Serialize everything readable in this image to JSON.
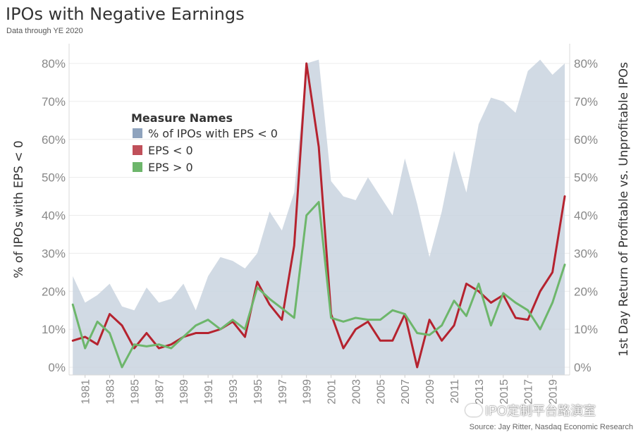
{
  "header": {
    "title": "IPOs with Negative Earnings",
    "subtitle": "Data through YE 2020"
  },
  "footer": {
    "source": "Source: Jay Ritter, Nasdaq Economic Research",
    "watermark": "IPO定制平台路演室"
  },
  "chart_data": {
    "type": "line",
    "title": "IPOs with Negative Earnings",
    "subtitle": "Data through YE 2020",
    "x": [
      1980,
      1981,
      1982,
      1983,
      1984,
      1985,
      1986,
      1987,
      1988,
      1989,
      1990,
      1991,
      1992,
      1993,
      1994,
      1995,
      1996,
      1997,
      1998,
      1999,
      2000,
      2001,
      2002,
      2003,
      2004,
      2005,
      2006,
      2007,
      2008,
      2009,
      2010,
      2011,
      2012,
      2013,
      2014,
      2015,
      2016,
      2017,
      2018,
      2019,
      2020
    ],
    "x_ticks": [
      "1981",
      "1983",
      "1985",
      "1987",
      "1989",
      "1991",
      "1993",
      "1995",
      "1997",
      "1999",
      "2001",
      "2003",
      "2005",
      "2007",
      "2009",
      "2011",
      "2013",
      "2015",
      "2017",
      "2019"
    ],
    "ylabel_left": "% of IPOs with EPS < 0",
    "ylabel_right": "1st Day Return of Profitable vs. Unprofitable IPOs",
    "ylim": [
      0,
      0.8
    ],
    "y_ticks": [
      "0%",
      "10%",
      "20%",
      "30%",
      "40%",
      "50%",
      "60%",
      "70%",
      "80%"
    ],
    "grid": true,
    "legend": {
      "title": "Measure Names",
      "placement": "top-left inside plot"
    },
    "series": [
      {
        "name": "% of IPOs with EPS < 0",
        "type": "area",
        "axis": "left",
        "color": "#c9d3df",
        "legend_color": "#8fa3bd",
        "values": [
          0.24,
          0.17,
          0.19,
          0.22,
          0.16,
          0.15,
          0.21,
          0.17,
          0.18,
          0.22,
          0.15,
          0.24,
          0.29,
          0.28,
          0.26,
          0.3,
          0.41,
          0.36,
          0.46,
          0.8,
          0.81,
          0.49,
          0.45,
          0.44,
          0.5,
          0.45,
          0.4,
          0.55,
          0.43,
          0.29,
          0.41,
          0.57,
          0.46,
          0.64,
          0.71,
          0.7,
          0.67,
          0.78,
          0.81,
          0.77,
          0.8
        ]
      },
      {
        "name": "EPS < 0",
        "type": "line",
        "axis": "right",
        "color": "#b5232f",
        "legend_color": "#c0505a",
        "values": [
          0.07,
          0.08,
          0.06,
          0.14,
          0.11,
          0.05,
          0.09,
          0.05,
          0.06,
          0.08,
          0.09,
          0.09,
          0.1,
          0.12,
          0.08,
          0.225,
          0.165,
          0.125,
          0.32,
          0.8,
          0.58,
          0.14,
          0.05,
          0.1,
          0.12,
          0.07,
          0.07,
          0.14,
          0.0,
          0.125,
          0.07,
          0.11,
          0.22,
          0.2,
          0.17,
          0.19,
          0.13,
          0.125,
          0.2,
          0.25,
          0.45
        ]
      },
      {
        "name": "EPS > 0",
        "type": "line",
        "axis": "right",
        "color": "#6db66b",
        "legend_color": "#6db66b",
        "values": [
          0.165,
          0.05,
          0.12,
          0.09,
          0.0,
          0.06,
          0.055,
          0.06,
          0.05,
          0.08,
          0.11,
          0.125,
          0.1,
          0.125,
          0.1,
          0.21,
          0.18,
          0.155,
          0.13,
          0.4,
          0.435,
          0.13,
          0.12,
          0.13,
          0.125,
          0.125,
          0.15,
          0.14,
          0.09,
          0.085,
          0.11,
          0.175,
          0.135,
          0.22,
          0.11,
          0.195,
          0.17,
          0.15,
          0.1,
          0.17,
          0.27
        ]
      }
    ]
  }
}
